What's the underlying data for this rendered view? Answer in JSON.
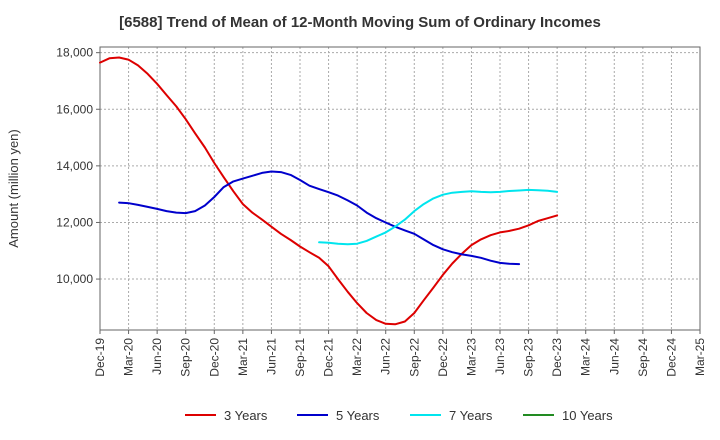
{
  "chart_data": {
    "type": "line",
    "title": "[6588]  Trend of Mean of 12-Month Moving Sum of Ordinary Incomes",
    "xlabel": "",
    "ylabel": "Amount (million yen)",
    "ylim": [
      8200,
      18200
    ],
    "yticks": [
      10000,
      12000,
      14000,
      16000,
      18000
    ],
    "ytick_labels": [
      "10,000",
      "12,000",
      "14,000",
      "16,000",
      "18,000"
    ],
    "x_categories": [
      "Dec-19",
      "Mar-20",
      "Jun-20",
      "Sep-20",
      "Dec-20",
      "Mar-21",
      "Jun-21",
      "Sep-21",
      "Dec-21",
      "Mar-22",
      "Jun-22",
      "Sep-22",
      "Dec-22",
      "Mar-23",
      "Jun-23",
      "Sep-23",
      "Dec-23",
      "Mar-24",
      "Jun-24",
      "Sep-24",
      "Dec-24",
      "Mar-25"
    ],
    "grid": true,
    "legend_position": "bottom",
    "series": [
      {
        "name": "3 Years",
        "color": "#dd0000",
        "points": [
          [
            0,
            17650
          ],
          [
            0.33,
            17800
          ],
          [
            0.67,
            17830
          ],
          [
            1,
            17750
          ],
          [
            1.33,
            17550
          ],
          [
            1.67,
            17250
          ],
          [
            2,
            16900
          ],
          [
            2.33,
            16500
          ],
          [
            2.67,
            16100
          ],
          [
            3,
            15650
          ],
          [
            3.33,
            15150
          ],
          [
            3.67,
            14650
          ],
          [
            4,
            14100
          ],
          [
            4.33,
            13600
          ],
          [
            4.67,
            13100
          ],
          [
            5,
            12650
          ],
          [
            5.33,
            12350
          ],
          [
            5.67,
            12100
          ],
          [
            6,
            11850
          ],
          [
            6.33,
            11600
          ],
          [
            6.67,
            11380
          ],
          [
            7,
            11150
          ],
          [
            7.33,
            10950
          ],
          [
            7.67,
            10750
          ],
          [
            8,
            10450
          ],
          [
            8.33,
            10000
          ],
          [
            8.67,
            9550
          ],
          [
            9,
            9150
          ],
          [
            9.33,
            8800
          ],
          [
            9.67,
            8550
          ],
          [
            10,
            8420
          ],
          [
            10.33,
            8400
          ],
          [
            10.67,
            8500
          ],
          [
            11,
            8800
          ],
          [
            11.33,
            9250
          ],
          [
            11.67,
            9700
          ],
          [
            12,
            10150
          ],
          [
            12.33,
            10550
          ],
          [
            12.67,
            10900
          ],
          [
            13,
            11200
          ],
          [
            13.33,
            11400
          ],
          [
            13.67,
            11550
          ],
          [
            14,
            11650
          ],
          [
            14.33,
            11700
          ],
          [
            14.67,
            11780
          ],
          [
            15,
            11900
          ],
          [
            15.33,
            12050
          ],
          [
            15.67,
            12150
          ],
          [
            16,
            12250
          ]
        ]
      },
      {
        "name": "5 Years",
        "color": "#0000cc",
        "points": [
          [
            0.67,
            12700
          ],
          [
            1,
            12680
          ],
          [
            1.33,
            12620
          ],
          [
            1.67,
            12550
          ],
          [
            2,
            12480
          ],
          [
            2.33,
            12400
          ],
          [
            2.67,
            12350
          ],
          [
            3,
            12330
          ],
          [
            3.33,
            12400
          ],
          [
            3.67,
            12600
          ],
          [
            4,
            12900
          ],
          [
            4.33,
            13250
          ],
          [
            4.67,
            13450
          ],
          [
            5,
            13550
          ],
          [
            5.33,
            13650
          ],
          [
            5.67,
            13750
          ],
          [
            6,
            13800
          ],
          [
            6.33,
            13780
          ],
          [
            6.67,
            13680
          ],
          [
            7,
            13500
          ],
          [
            7.33,
            13300
          ],
          [
            7.67,
            13180
          ],
          [
            8,
            13070
          ],
          [
            8.33,
            12950
          ],
          [
            8.67,
            12780
          ],
          [
            9,
            12600
          ],
          [
            9.33,
            12350
          ],
          [
            9.67,
            12150
          ],
          [
            10,
            12000
          ],
          [
            10.33,
            11850
          ],
          [
            10.67,
            11720
          ],
          [
            11,
            11600
          ],
          [
            11.33,
            11400
          ],
          [
            11.67,
            11200
          ],
          [
            12,
            11050
          ],
          [
            12.33,
            10950
          ],
          [
            12.67,
            10870
          ],
          [
            13,
            10820
          ],
          [
            13.33,
            10750
          ],
          [
            13.67,
            10650
          ],
          [
            14,
            10570
          ],
          [
            14.33,
            10540
          ],
          [
            14.67,
            10530
          ]
        ]
      },
      {
        "name": "7 Years",
        "color": "#00e5ee",
        "points": [
          [
            7.67,
            11300
          ],
          [
            8,
            11280
          ],
          [
            8.33,
            11250
          ],
          [
            8.67,
            11230
          ],
          [
            9,
            11250
          ],
          [
            9.33,
            11350
          ],
          [
            9.67,
            11500
          ],
          [
            10,
            11650
          ],
          [
            10.33,
            11850
          ],
          [
            10.67,
            12100
          ],
          [
            11,
            12400
          ],
          [
            11.33,
            12650
          ],
          [
            11.67,
            12850
          ],
          [
            12,
            12980
          ],
          [
            12.33,
            13050
          ],
          [
            12.67,
            13080
          ],
          [
            13,
            13100
          ],
          [
            13.33,
            13080
          ],
          [
            13.67,
            13070
          ],
          [
            14,
            13080
          ],
          [
            14.33,
            13110
          ],
          [
            14.67,
            13130
          ],
          [
            15,
            13150
          ],
          [
            15.33,
            13140
          ],
          [
            15.67,
            13120
          ],
          [
            16,
            13080
          ]
        ]
      },
      {
        "name": "10 Years",
        "color": "#228b22",
        "points": []
      }
    ]
  }
}
